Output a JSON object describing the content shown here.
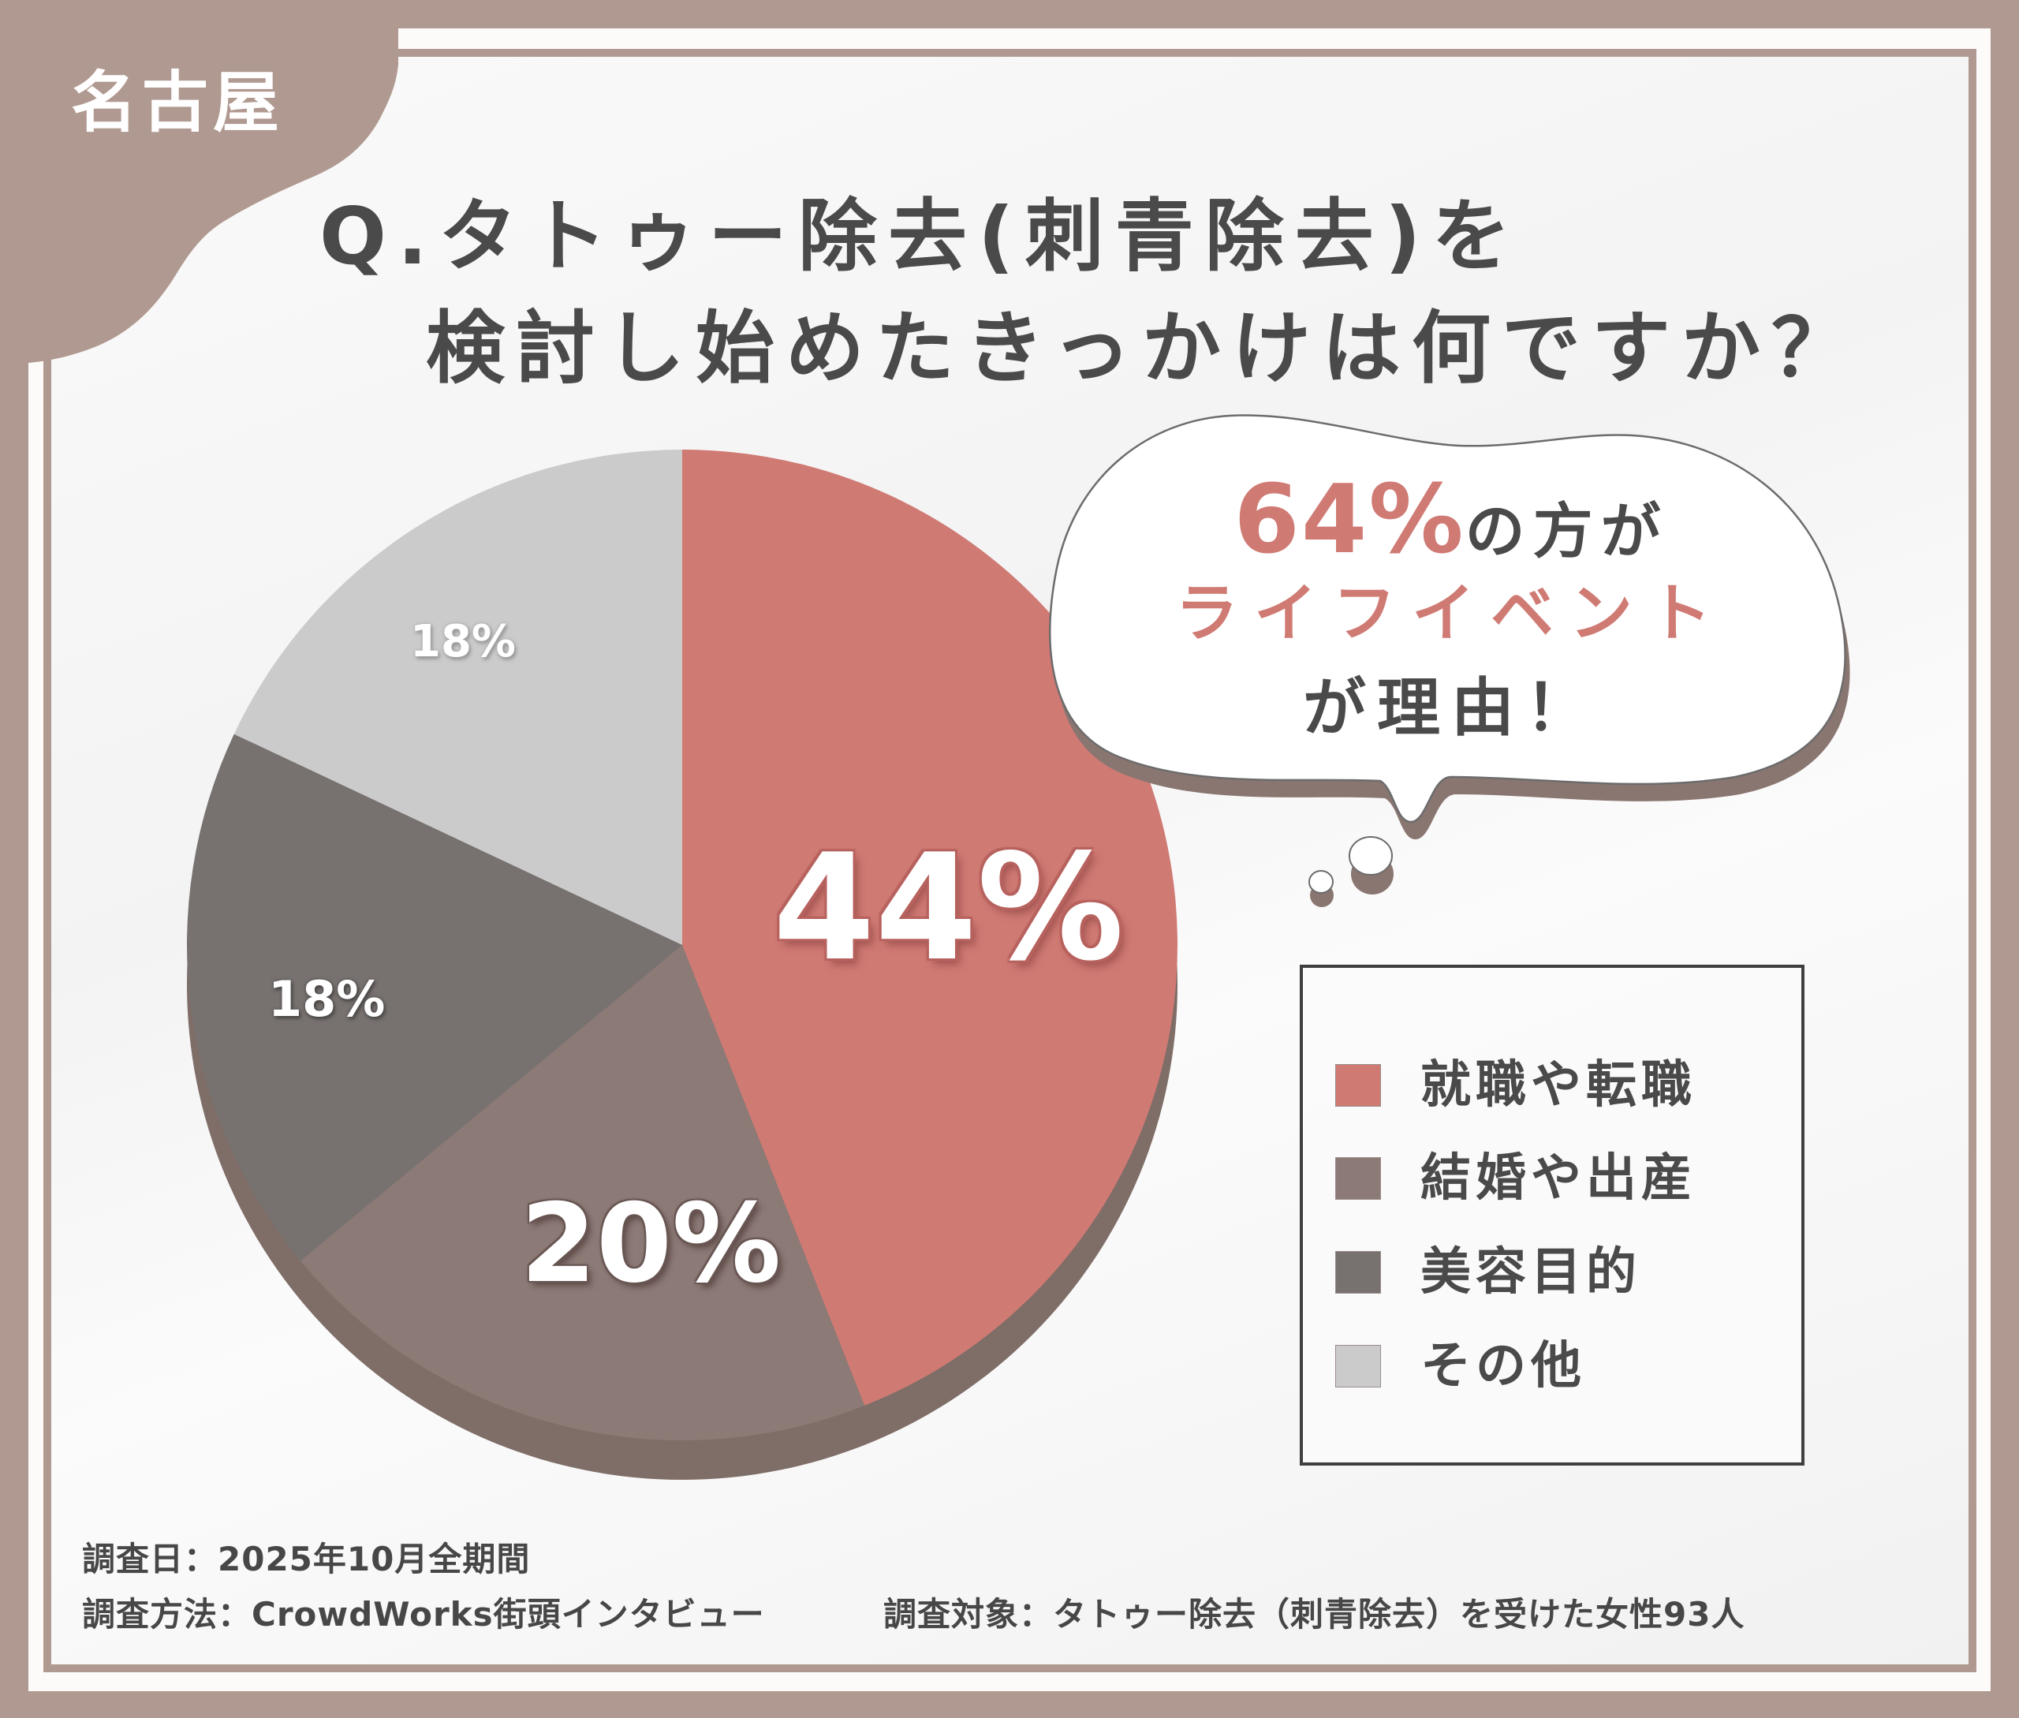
{
  "badge": {
    "city": "名古屋"
  },
  "title": {
    "line1": "Q.タトゥー除去(刺青除去)を",
    "line2": "検討し始めたきっかけは何ですか？"
  },
  "callout": {
    "highlight_percent": "64%",
    "line1_suffix": "の方が",
    "line2": "ライフイベント",
    "line3": "が理由！"
  },
  "legend": {
    "items": [
      {
        "label": "就職や転職",
        "color": "#d07a74"
      },
      {
        "label": "結婚や出産",
        "color": "#8c7a76"
      },
      {
        "label": "美容目的",
        "color": "#777270"
      },
      {
        "label": "その他",
        "color": "#cbcbcb"
      }
    ]
  },
  "pie_labels": {
    "job_change": "44%",
    "marriage_birth": "20%",
    "beauty": "18%",
    "other": "18%"
  },
  "footer": {
    "survey_date": "調査日：2025年10月全期間",
    "survey_method": "調査方法：CrowdWorks街頭インタビュー",
    "survey_target": "調査対象：タトゥー除去（刺青除去）を受けた女性93人"
  },
  "colors": {
    "frame": "#b09990",
    "accent_rose": "#d07a74",
    "text_dark": "#4a4a4a",
    "pie_shadow": "#7f6d67"
  },
  "chart_data": {
    "type": "pie",
    "title": "Q.タトゥー除去(刺青除去)を検討し始めたきっかけは何ですか？",
    "categories": [
      "就職や転職",
      "結婚や出産",
      "美容目的",
      "その他"
    ],
    "values": [
      44,
      20,
      18,
      18
    ],
    "unit": "%",
    "colors": [
      "#d07a74",
      "#8c7a76",
      "#777270",
      "#cbcbcb"
    ],
    "start_angle": "12 o'clock, clockwise",
    "legend_position": "right",
    "annotation": "64%の方がライフイベントが理由！",
    "sample_size": 93
  }
}
